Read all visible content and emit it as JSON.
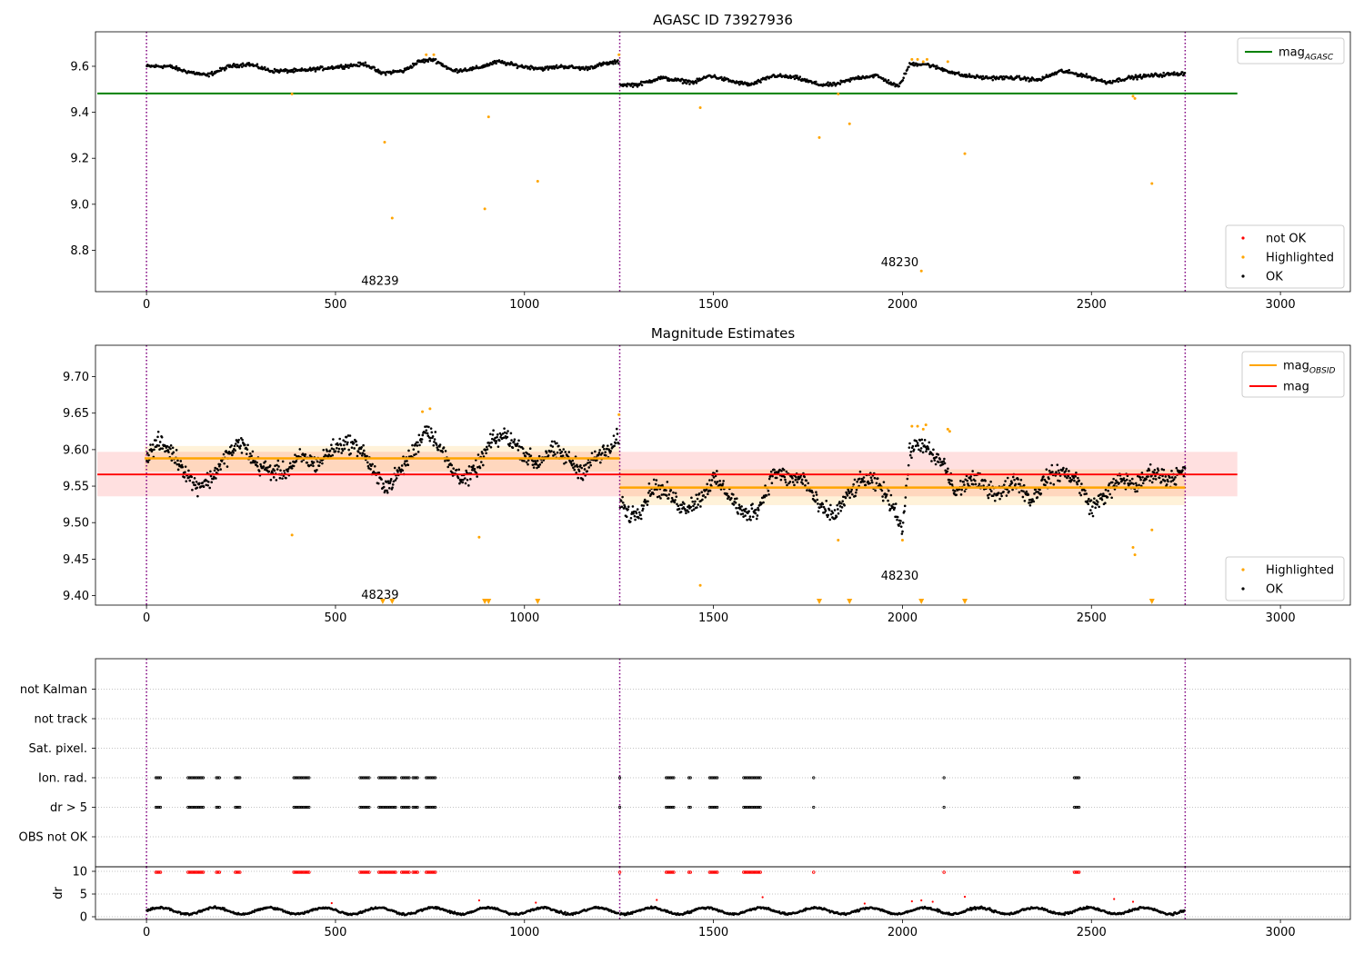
{
  "chart_data": [
    {
      "type": "scatter",
      "title": "AGASC ID 73927936",
      "xlim": [
        -135,
        3185
      ],
      "ylim": [
        8.62,
        9.75
      ],
      "xticks": [
        0,
        500,
        1000,
        1500,
        2000,
        2500,
        3000
      ],
      "yticks": [
        8.8,
        9.0,
        9.2,
        9.4,
        9.6
      ],
      "ytick_labels": [
        "8.8",
        "9.0",
        "9.2",
        "9.4",
        "9.6"
      ],
      "obs_boundaries": [
        0,
        1252,
        2748
      ],
      "obs_labels": [
        {
          "text": "48239",
          "x": 625,
          "y": 8.67
        },
        {
          "text": "48230",
          "x": 2000,
          "y": 8.75
        }
      ],
      "mag_agasc": {
        "value": 9.482,
        "x_range": [
          -130,
          2886
        ],
        "color": "#008000"
      },
      "ok_trend": [
        {
          "x": [
            0,
            60,
            100,
            160,
            220,
            270,
            330,
            400,
            460,
            520,
            580,
            620,
            680,
            720,
            760,
            810,
            870,
            930,
            990,
            1050,
            1100,
            1160,
            1210,
            1250
          ],
          "y": [
            9.6,
            9.6,
            9.58,
            9.56,
            9.6,
            9.61,
            9.58,
            9.58,
            9.59,
            9.6,
            9.61,
            9.57,
            9.58,
            9.62,
            9.63,
            9.58,
            9.59,
            9.62,
            9.6,
            9.59,
            9.6,
            9.59,
            9.61,
            9.62
          ]
        },
        {
          "x": [
            1252,
            1300,
            1360,
            1400,
            1450,
            1490,
            1560,
            1600,
            1660,
            1720,
            1780,
            1820,
            1880,
            1930,
            1990,
            2020,
            2060,
            2100,
            2160,
            2220,
            2300,
            2360,
            2420,
            2480,
            2540,
            2600,
            2660,
            2748
          ],
          "y": [
            9.52,
            9.52,
            9.55,
            9.54,
            9.53,
            9.56,
            9.53,
            9.52,
            9.56,
            9.55,
            9.52,
            9.52,
            9.55,
            9.56,
            9.51,
            9.61,
            9.61,
            9.59,
            9.56,
            9.55,
            9.55,
            9.54,
            9.58,
            9.56,
            9.53,
            9.55,
            9.56,
            9.57
          ]
        }
      ],
      "highlighted": [
        {
          "x": 630,
          "y": 9.27
        },
        {
          "x": 650,
          "y": 8.94
        },
        {
          "x": 740,
          "y": 9.65
        },
        {
          "x": 760,
          "y": 9.65
        },
        {
          "x": 385,
          "y": 9.48
        },
        {
          "x": 895,
          "y": 8.98
        },
        {
          "x": 905,
          "y": 9.38
        },
        {
          "x": 1035,
          "y": 9.1
        },
        {
          "x": 1250,
          "y": 9.65
        },
        {
          "x": 1465,
          "y": 9.42
        },
        {
          "x": 1780,
          "y": 9.29
        },
        {
          "x": 1860,
          "y": 9.35
        },
        {
          "x": 1830,
          "y": 9.48
        },
        {
          "x": 2025,
          "y": 9.63
        },
        {
          "x": 2040,
          "y": 9.63
        },
        {
          "x": 2055,
          "y": 9.62
        },
        {
          "x": 2065,
          "y": 9.63
        },
        {
          "x": 2120,
          "y": 9.62
        },
        {
          "x": 2165,
          "y": 9.22
        },
        {
          "x": 2050,
          "y": 8.71
        },
        {
          "x": 2610,
          "y": 9.47
        },
        {
          "x": 2615,
          "y": 9.46
        },
        {
          "x": 2660,
          "y": 9.09
        }
      ],
      "legend_top": [
        {
          "label": "mag",
          "sub": "AGASC",
          "color": "#008000"
        }
      ],
      "legend_bottom": [
        {
          "label": "not OK",
          "color": "#ff0000"
        },
        {
          "label": "Highlighted",
          "color": "#ffa500"
        },
        {
          "label": "OK",
          "color": "#000000"
        }
      ]
    },
    {
      "type": "scatter",
      "title": "Magnitude Estimates",
      "xlim": [
        -135,
        3185
      ],
      "ylim": [
        9.387,
        9.743
      ],
      "xticks": [
        0,
        500,
        1000,
        1500,
        2000,
        2500,
        3000
      ],
      "yticks": [
        9.4,
        9.45,
        9.5,
        9.55,
        9.6,
        9.65,
        9.7
      ],
      "ytick_labels": [
        "9.40",
        "9.45",
        "9.50",
        "9.55",
        "9.60",
        "9.65",
        "9.70"
      ],
      "obs_boundaries": [
        0,
        1252,
        2748
      ],
      "obs_labels": [
        {
          "text": "48239",
          "x": 625,
          "y": 9.402
        },
        {
          "text": "48230",
          "x": 2000,
          "y": 9.428
        }
      ],
      "mag": {
        "value": 9.566,
        "band": [
          9.536,
          9.597
        ],
        "x_range": [
          -130,
          2886
        ],
        "color": "#ff0000"
      },
      "mag_obsid": [
        {
          "x_range": [
            -5,
            1252
          ],
          "value": 9.588,
          "band": [
            9.57,
            9.605
          ]
        },
        {
          "x_range": [
            1252,
            2748
          ],
          "value": 9.548,
          "band": [
            9.524,
            9.573
          ]
        }
      ],
      "ok_trend": [
        {
          "x": [
            0,
            30,
            60,
            90,
            130,
            170,
            210,
            250,
            290,
            330,
            370,
            410,
            450,
            490,
            530,
            570,
            610,
            640,
            670,
            710,
            740,
            770,
            810,
            850,
            880,
            910,
            950,
            990,
            1030,
            1070,
            1110,
            1150,
            1190,
            1230,
            1250
          ],
          "y": [
            9.59,
            9.61,
            9.6,
            9.58,
            9.55,
            9.56,
            9.59,
            9.61,
            9.58,
            9.57,
            9.57,
            9.59,
            9.58,
            9.6,
            9.61,
            9.6,
            9.56,
            9.55,
            9.57,
            9.6,
            9.63,
            9.61,
            9.57,
            9.56,
            9.58,
            9.61,
            9.62,
            9.6,
            9.58,
            9.6,
            9.59,
            9.57,
            9.59,
            9.6,
            9.62
          ]
        },
        {
          "x": [
            1252,
            1280,
            1310,
            1340,
            1380,
            1420,
            1460,
            1500,
            1540,
            1580,
            1620,
            1660,
            1700,
            1740,
            1780,
            1820,
            1860,
            1900,
            1940,
            1980,
            2000,
            2020,
            2050,
            2080,
            2110,
            2140,
            2180,
            2220,
            2260,
            2300,
            2340,
            2380,
            2420,
            2460,
            2500,
            2540,
            2580,
            2620,
            2660,
            2700,
            2748
          ],
          "y": [
            9.53,
            9.51,
            9.52,
            9.55,
            9.54,
            9.52,
            9.53,
            9.56,
            9.54,
            9.51,
            9.52,
            9.57,
            9.56,
            9.56,
            9.52,
            9.51,
            9.54,
            9.56,
            9.55,
            9.52,
            9.49,
            9.6,
            9.61,
            9.59,
            9.58,
            9.54,
            9.56,
            9.55,
            9.54,
            9.56,
            9.53,
            9.56,
            9.57,
            9.56,
            9.52,
            9.54,
            9.56,
            9.55,
            9.57,
            9.56,
            9.57
          ]
        }
      ],
      "highlighted": [
        {
          "x": 385,
          "y": 9.483
        },
        {
          "x": 730,
          "y": 9.652
        },
        {
          "x": 750,
          "y": 9.656
        },
        {
          "x": 880,
          "y": 9.48
        },
        {
          "x": 1250,
          "y": 9.648
        },
        {
          "x": 1465,
          "y": 9.414
        },
        {
          "x": 1830,
          "y": 9.476
        },
        {
          "x": 2000,
          "y": 9.476
        },
        {
          "x": 2025,
          "y": 9.632
        },
        {
          "x": 2040,
          "y": 9.632
        },
        {
          "x": 2055,
          "y": 9.628
        },
        {
          "x": 2062,
          "y": 9.634
        },
        {
          "x": 2120,
          "y": 9.628
        },
        {
          "x": 2125,
          "y": 9.625
        },
        {
          "x": 2610,
          "y": 9.466
        },
        {
          "x": 2615,
          "y": 9.456
        },
        {
          "x": 2660,
          "y": 9.49
        }
      ],
      "below_range_markers": [
        625,
        650,
        895,
        905,
        1035,
        1780,
        1860,
        2050,
        2165,
        2660
      ],
      "legend_top": [
        {
          "label": "mag",
          "sub": "OBSID",
          "color": "#ffa500"
        },
        {
          "label": "mag",
          "sub": "",
          "color": "#ff0000"
        }
      ],
      "legend_bottom": [
        {
          "label": "Highlighted",
          "color": "#ffa500"
        },
        {
          "label": "OK",
          "color": "#000000"
        }
      ]
    },
    {
      "type": "scatter",
      "xlim": [
        -135,
        3185
      ],
      "xticks": [
        0,
        500,
        1000,
        1500,
        2000,
        2500,
        3000
      ],
      "obs_boundaries": [
        0,
        1252,
        2748
      ],
      "flag_rows": [
        "not Kalman",
        "not track",
        "Sat. pixel.",
        "Ion. rad.",
        "dr > 5",
        "OBS not OK"
      ],
      "flag_clusters": [
        [
          25,
          40
        ],
        [
          110,
          150
        ],
        [
          185,
          195
        ],
        [
          235,
          250
        ],
        [
          390,
          430
        ],
        [
          565,
          590
        ],
        [
          615,
          660
        ],
        [
          675,
          695
        ],
        [
          705,
          720
        ],
        [
          740,
          765
        ],
        [
          1252,
          1255
        ],
        [
          1375,
          1395
        ],
        [
          1435,
          1440
        ],
        [
          1490,
          1510
        ],
        [
          1580,
          1625
        ],
        [
          1765,
          1768
        ],
        [
          2110,
          2113
        ],
        [
          2455,
          2470
        ]
      ],
      "dr": {
        "ylim": [
          -0.6,
          11.0
        ],
        "yticks": [
          0,
          5,
          10
        ],
        "ytick_labels": [
          "0",
          "5",
          "10"
        ],
        "ylabel": "dr",
        "clip_value": 10,
        "red_points": [
          {
            "x": 490,
            "y": 3.0
          },
          {
            "x": 880,
            "y": 3.6
          },
          {
            "x": 1030,
            "y": 3.1
          },
          {
            "x": 1350,
            "y": 3.7
          },
          {
            "x": 1630,
            "y": 4.3
          },
          {
            "x": 1900,
            "y": 2.9
          },
          {
            "x": 2025,
            "y": 3.4
          },
          {
            "x": 2050,
            "y": 3.6
          },
          {
            "x": 2080,
            "y": 3.3
          },
          {
            "x": 2165,
            "y": 4.4
          },
          {
            "x": 2560,
            "y": 3.9
          },
          {
            "x": 2610,
            "y": 3.3
          }
        ]
      }
    }
  ]
}
